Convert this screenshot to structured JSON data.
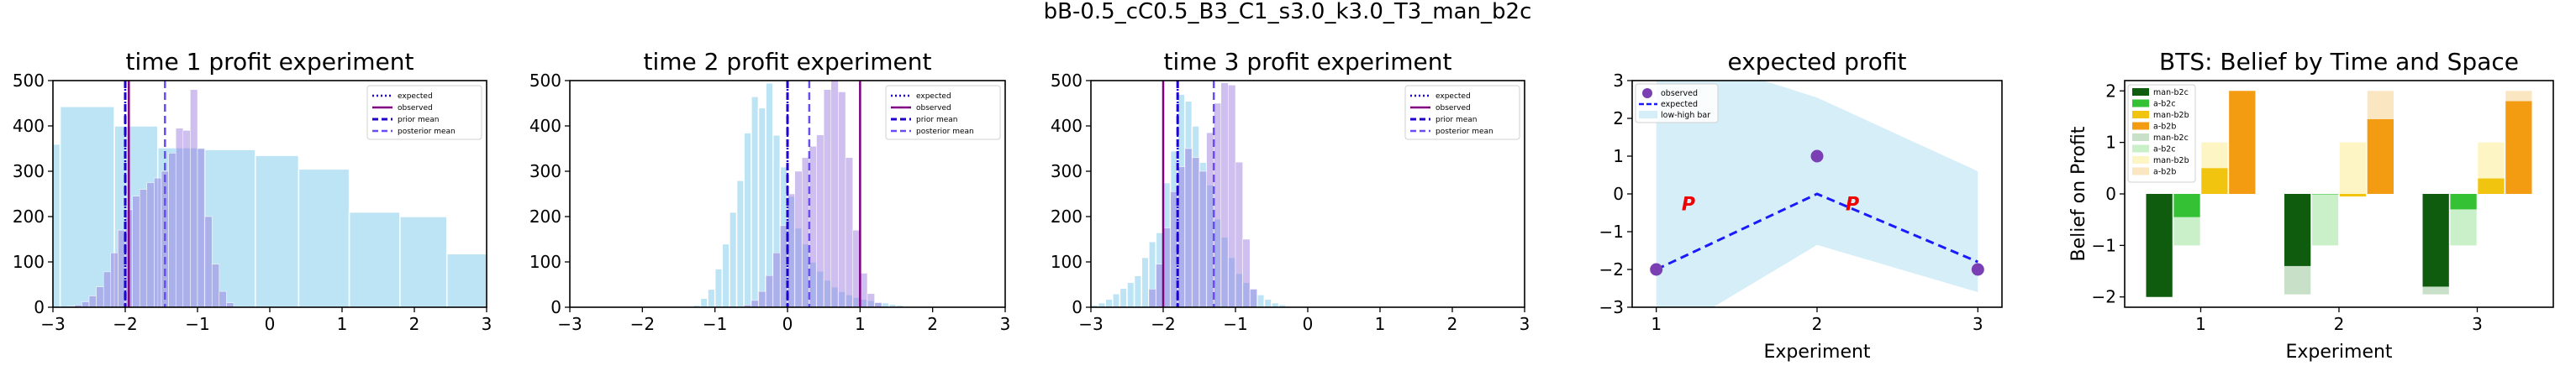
{
  "figure": {
    "suptitle": "bB-0.5_cC0.5_B3_C1_s3.0_k3.0_T3_man_b2c"
  },
  "colors": {
    "sky": "#87ceeb",
    "prior_mean": "#1f00cc",
    "posterior_mean": "#6a4cf5",
    "observed": "#800080",
    "posterior_hist": "#9370db",
    "dots": "#7b3fb4",
    "red_label": "#ee0000"
  },
  "chart_data": [
    {
      "type": "bar",
      "title": "time 1 profit experiment",
      "xlim": [
        -3,
        3
      ],
      "ylim": [
        0,
        500
      ],
      "xticks": [
        "−3",
        "−2",
        "−1",
        "0",
        "1",
        "2",
        "3"
      ],
      "yticks": [
        "0",
        "100",
        "200",
        "300",
        "400",
        "500"
      ],
      "legend_position": "upper right",
      "legend": [
        "expected",
        "observed",
        "prior mean",
        "posterior mean"
      ],
      "lines": {
        "expected": -2.0,
        "observed": -1.95,
        "prior_mean": -2.0,
        "posterior_mean": -1.45
      },
      "prior_hist": {
        "edges": [
          -3.3,
          -2.9,
          -2.15,
          -1.55,
          -0.9,
          -0.2,
          0.4,
          1.1,
          1.8,
          2.45,
          3.05
        ],
        "counts": [
          360,
          443,
          400,
          352,
          348,
          335,
          305,
          210,
          200,
          118
        ]
      },
      "posterior_hist": {
        "edges": [
          -2.8,
          -2.7,
          -2.6,
          -2.5,
          -2.4,
          -2.3,
          -2.2,
          -2.1,
          -2.0,
          -1.9,
          -1.8,
          -1.7,
          -1.6,
          -1.5,
          -1.4,
          -1.3,
          -1.2,
          -1.1,
          -1.0,
          -0.9,
          -0.8,
          -0.7,
          -0.6,
          -0.5
        ],
        "counts": [
          2,
          5,
          12,
          25,
          45,
          78,
          120,
          170,
          215,
          245,
          260,
          275,
          285,
          300,
          340,
          395,
          390,
          480,
          350,
          200,
          95,
          35,
          10
        ]
      }
    },
    {
      "type": "bar",
      "title": "time 2 profit experiment",
      "xlim": [
        -3,
        3
      ],
      "ylim": [
        0,
        500
      ],
      "xticks": [
        "−3",
        "−2",
        "−1",
        "0",
        "1",
        "2",
        "3"
      ],
      "yticks": [
        "0",
        "100",
        "200",
        "300",
        "400",
        "500"
      ],
      "legend_position": "upper right",
      "legend": [
        "expected",
        "observed",
        "prior mean",
        "posterior mean"
      ],
      "lines": {
        "expected": 0.0,
        "observed": 1.0,
        "prior_mean": 0.0,
        "posterior_mean": 0.3
      },
      "prior_hist": {
        "edges": [
          -1.3,
          -1.2,
          -1.1,
          -1.0,
          -0.9,
          -0.8,
          -0.7,
          -0.6,
          -0.5,
          -0.4,
          -0.3,
          -0.2,
          -0.1,
          0.0,
          0.1,
          0.2,
          0.3,
          0.4,
          0.5,
          0.6,
          0.7,
          0.8,
          0.9,
          1.0,
          1.1,
          1.2,
          1.3,
          1.4,
          1.5,
          1.6
        ],
        "counts": [
          5,
          20,
          40,
          85,
          140,
          210,
          280,
          385,
          465,
          440,
          495,
          380,
          310,
          245,
          175,
          140,
          100,
          80,
          60,
          45,
          35,
          28,
          22,
          18,
          15,
          12,
          10,
          7,
          5
        ]
      },
      "posterior_hist": {
        "edges": [
          -0.6,
          -0.5,
          -0.4,
          -0.3,
          -0.2,
          -0.1,
          0.0,
          0.1,
          0.2,
          0.3,
          0.4,
          0.5,
          0.6,
          0.7,
          0.8,
          0.9,
          1.0,
          1.1,
          1.2,
          1.3
        ],
        "counts": [
          5,
          15,
          35,
          70,
          120,
          180,
          250,
          300,
          330,
          355,
          380,
          480,
          500,
          475,
          330,
          170,
          75,
          30,
          10
        ]
      }
    },
    {
      "type": "bar",
      "title": "time 3 profit experiment",
      "xlim": [
        -3,
        3
      ],
      "ylim": [
        0,
        500
      ],
      "xticks": [
        "−3",
        "−2",
        "−1",
        "0",
        "1",
        "2",
        "3"
      ],
      "yticks": [
        "0",
        "100",
        "200",
        "300",
        "400",
        "500"
      ],
      "legend_position": "upper right",
      "legend": [
        "expected",
        "observed",
        "prior mean",
        "posterior mean"
      ],
      "lines": {
        "expected": -1.8,
        "observed": -2.0,
        "prior_mean": -1.8,
        "posterior_mean": -1.3
      },
      "prior_hist": {
        "edges": [
          -3.0,
          -2.9,
          -2.8,
          -2.7,
          -2.6,
          -2.5,
          -2.4,
          -2.3,
          -2.2,
          -2.1,
          -2.0,
          -1.9,
          -1.8,
          -1.7,
          -1.6,
          -1.5,
          -1.4,
          -1.3,
          -1.2,
          -1.1,
          -1.0,
          -0.9,
          -0.8,
          -0.7,
          -0.6,
          -0.5,
          -0.4,
          -0.3,
          -0.2
        ],
        "counts": [
          5,
          10,
          18,
          30,
          42,
          55,
          70,
          110,
          145,
          165,
          275,
          345,
          470,
          455,
          400,
          320,
          270,
          195,
          155,
          110,
          75,
          55,
          40,
          28,
          18,
          10,
          6,
          3
        ]
      },
      "posterior_hist": {
        "edges": [
          -2.2,
          -2.1,
          -2.0,
          -1.9,
          -1.8,
          -1.7,
          -1.6,
          -1.5,
          -1.4,
          -1.3,
          -1.2,
          -1.1,
          -1.0,
          -0.9,
          -0.8,
          -0.7
        ],
        "counts": [
          40,
          95,
          175,
          255,
          310,
          350,
          330,
          300,
          385,
          450,
          495,
          490,
          320,
          150,
          40
        ]
      }
    },
    {
      "type": "line",
      "title": "expected profit",
      "xlabel": "Experiment",
      "xlim": [
        0.85,
        3.15
      ],
      "ylim": [
        -3,
        3
      ],
      "xticks": [
        "1",
        "2",
        "3"
      ],
      "yticks": [
        "−3",
        "−2",
        "−1",
        "0",
        "1",
        "2",
        "3"
      ],
      "legend_position": "upper left",
      "legend": [
        "observed",
        "expected",
        "low-high bar"
      ],
      "x": [
        1,
        2,
        3
      ],
      "observed": [
        -2.0,
        1.0,
        -2.0
      ],
      "expected": [
        -2.0,
        0.0,
        -1.8
      ],
      "band_low": [
        -3.9,
        -1.35,
        -2.6
      ],
      "band_high": [
        3.9,
        2.55,
        0.6
      ],
      "annotations": [
        {
          "text": "P",
          "x": 1.2,
          "y": -0.25
        },
        {
          "text": "P",
          "x": 2.22,
          "y": -0.25
        },
        {
          "text": "P",
          "x": 3.22,
          "y": -0.25
        }
      ]
    },
    {
      "type": "bar",
      "title": "BTS: Belief by Time and Space",
      "xlabel": "Experiment",
      "ylabel": "Belief on Profit",
      "ylim": [
        -2.2,
        2.2
      ],
      "xticks": [
        "1",
        "2",
        "3"
      ],
      "yticks": [
        "−2",
        "−1",
        "0",
        "1",
        "2"
      ],
      "legend_position": "upper left",
      "categories": [
        "1",
        "2",
        "3"
      ],
      "series": [
        {
          "name": "man-b2c",
          "color": "#0f5c0f",
          "offset": -0.3,
          "values": [
            -2.0,
            -1.4,
            -1.8
          ]
        },
        {
          "name": "a-b2c",
          "color": "#34c234",
          "offset": -0.1,
          "values": [
            -0.45,
            0.0,
            -0.3
          ]
        },
        {
          "name": "man-b2b",
          "color": "#f1c40f",
          "offset": 0.1,
          "values": [
            0.5,
            -0.05,
            0.3
          ]
        },
        {
          "name": "a-b2b",
          "color": "#f39c12",
          "offset": 0.3,
          "values": [
            2.0,
            1.45,
            1.8
          ]
        },
        {
          "name": "man-b2c",
          "color": "#c8dfc8",
          "offset": -0.3,
          "values": [
            -2.0,
            -1.95,
            -1.95
          ]
        },
        {
          "name": "a-b2c",
          "color": "#c9f0c9",
          "offset": -0.1,
          "values": [
            -1.0,
            -1.0,
            -1.0
          ]
        },
        {
          "name": "man-b2b",
          "color": "#fdf5c4",
          "offset": 0.1,
          "values": [
            1.0,
            1.0,
            1.0
          ]
        },
        {
          "name": "a-b2b",
          "color": "#fbe6c2",
          "offset": 0.3,
          "values": [
            2.0,
            2.0,
            2.0
          ]
        }
      ]
    }
  ]
}
